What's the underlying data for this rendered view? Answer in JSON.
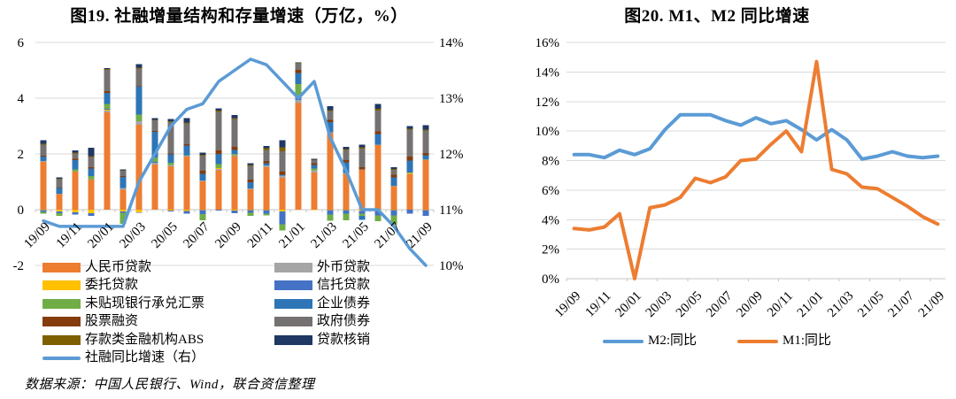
{
  "page": {
    "source_note": "数据来源：中国人民银行、Wind，联合资信整理"
  },
  "chart_data": [
    {
      "type": "bar",
      "subtype": "stacked-bars-with-line",
      "title": "图19. 社融增量结构和存量增速（万亿，%）",
      "categories": [
        "19/09",
        "19/10",
        "19/11",
        "19/12",
        "20/01",
        "20/02",
        "20/03",
        "20/04",
        "20/05",
        "20/06",
        "20/07",
        "20/08",
        "20/09",
        "20/10",
        "20/11",
        "20/12",
        "21/01",
        "21/02",
        "21/03",
        "21/04",
        "21/05",
        "21/06",
        "21/07",
        "21/08",
        "21/09"
      ],
      "x_tick_labels": [
        "19/09",
        "19/11",
        "20/01",
        "20/03",
        "20/05",
        "20/07",
        "20/09",
        "20/11",
        "21/01",
        "21/03",
        "21/05",
        "21/07",
        "21/09"
      ],
      "left_axis": {
        "ticks": [
          "6",
          "4",
          "2",
          "0",
          "-2"
        ],
        "tick_values": [
          6,
          4,
          2,
          0,
          -2
        ],
        "range": [
          -2,
          6
        ],
        "unit": "万亿"
      },
      "right_axis": {
        "ticks": [
          "14%",
          "13%",
          "12%",
          "11%",
          "10%"
        ],
        "tick_values": [
          14,
          13,
          12,
          11,
          10
        ],
        "range": [
          10,
          14
        ],
        "unit": "%"
      },
      "grid": true,
      "legend_position": "bottom-two-columns",
      "series": [
        {
          "name": "人民币贷款",
          "color": "#ED7D31",
          "values": [
            1.72,
            0.55,
            1.36,
            1.08,
            3.49,
            0.72,
            3.04,
            1.62,
            1.55,
            1.9,
            1.02,
            1.42,
            1.92,
            0.73,
            1.53,
            1.15,
            3.82,
            1.34,
            2.75,
            1.28,
            1.43,
            2.32,
            0.84,
            1.27,
            1.78
          ]
        },
        {
          "name": "外币贷款",
          "color": "#A5A5A5",
          "values": [
            0.02,
            0.02,
            0.02,
            0.02,
            0.06,
            0.05,
            0.14,
            0.07,
            0.05,
            0.04,
            0.02,
            0.04,
            0.04,
            0.03,
            0.05,
            0.07,
            0.11,
            0.07,
            0.03,
            0.03,
            0.02,
            0.02,
            0.02,
            0.02,
            0.02
          ]
        },
        {
          "name": "委托贷款",
          "color": "#FFC000",
          "values": [
            -0.02,
            -0.07,
            -0.1,
            -0.13,
            0.03,
            -0.06,
            -0.1,
            0.0,
            -0.03,
            -0.05,
            -0.02,
            0.04,
            -0.03,
            -0.02,
            -0.01,
            -0.06,
            0.01,
            -0.01,
            -0.02,
            -0.02,
            -0.04,
            -0.05,
            -0.02,
            0.02,
            -0.02
          ]
        },
        {
          "name": "信托贷款",
          "color": "#4472C4",
          "values": [
            -0.06,
            -0.06,
            -0.07,
            -0.1,
            0.04,
            -0.05,
            -0.01,
            0.02,
            -0.03,
            -0.09,
            -0.14,
            -0.03,
            -0.09,
            -0.09,
            -0.14,
            -0.46,
            0.08,
            -0.01,
            -0.16,
            -0.13,
            -0.1,
            -0.15,
            -0.19,
            -0.14,
            -0.2
          ]
        },
        {
          "name": "未贴现银行承兑汇票",
          "color": "#70AD47",
          "values": [
            -0.06,
            -0.1,
            0.06,
            0.11,
            0.18,
            -0.39,
            0.23,
            0.16,
            0.08,
            0.02,
            -0.22,
            0.14,
            0.04,
            -0.11,
            -0.06,
            -0.22,
            0.49,
            0.06,
            -0.22,
            -0.23,
            -0.09,
            -0.22,
            -0.33,
            0.02,
            0.01
          ]
        },
        {
          "name": "企业债券",
          "color": "#2E75B6",
          "values": [
            0.16,
            0.2,
            0.33,
            0.27,
            0.39,
            0.4,
            1.0,
            0.93,
            0.3,
            0.34,
            0.24,
            0.36,
            0.14,
            0.23,
            0.09,
            0.04,
            0.4,
            0.13,
            0.37,
            0.39,
            -0.13,
            0.37,
            0.3,
            0.43,
            0.14
          ]
        },
        {
          "name": "股票融资",
          "color": "#843C0C",
          "values": [
            0.03,
            0.02,
            0.05,
            0.04,
            0.06,
            0.04,
            0.02,
            0.03,
            0.03,
            0.05,
            0.12,
            0.13,
            0.11,
            0.09,
            0.08,
            0.11,
            0.1,
            0.07,
            0.08,
            0.08,
            0.07,
            0.1,
            0.09,
            0.15,
            0.08
          ]
        },
        {
          "name": "政府债券",
          "color": "#767171",
          "values": [
            0.41,
            0.3,
            0.19,
            0.37,
            0.76,
            0.18,
            0.64,
            0.37,
            1.14,
            0.74,
            0.54,
            1.38,
            1.01,
            0.49,
            0.4,
            0.72,
            0.24,
            0.11,
            0.31,
            0.37,
            0.67,
            0.75,
            0.18,
            0.97,
            0.81
          ]
        },
        {
          "name": "存款类金融机构ABS",
          "color": "#7F6000",
          "values": [
            0.03,
            0.02,
            0.03,
            0.03,
            0.04,
            0.02,
            0.03,
            0.02,
            0.02,
            0.03,
            0.03,
            0.04,
            0.03,
            0.04,
            0.05,
            0.15,
            0.02,
            0.02,
            0.03,
            0.03,
            0.05,
            0.06,
            0.03,
            0.03,
            0.04
          ]
        },
        {
          "name": "贷款核销",
          "color": "#1F3864",
          "values": [
            0.12,
            0.05,
            0.08,
            0.3,
            0.03,
            0.03,
            0.13,
            0.07,
            0.09,
            0.17,
            0.07,
            0.08,
            0.11,
            0.06,
            0.09,
            0.26,
            0.02,
            0.03,
            0.15,
            0.08,
            0.09,
            0.17,
            0.06,
            0.09,
            0.15
          ]
        }
      ],
      "line_series": {
        "name": "社融同比增速（右）",
        "color": "#5B9BD5",
        "axis": "right",
        "values": [
          10.8,
          10.7,
          10.7,
          10.7,
          10.7,
          10.7,
          11.5,
          12.0,
          12.5,
          12.8,
          12.9,
          13.3,
          13.5,
          13.7,
          13.6,
          13.3,
          13.0,
          13.3,
          12.3,
          11.7,
          11.0,
          11.0,
          10.7,
          10.3,
          10.0
        ]
      }
    },
    {
      "type": "line",
      "title": "图20. M1、M2 同比增速",
      "categories": [
        "19/09",
        "19/10",
        "19/11",
        "19/12",
        "20/01",
        "20/02",
        "20/03",
        "20/04",
        "20/05",
        "20/06",
        "20/07",
        "20/08",
        "20/09",
        "20/10",
        "20/11",
        "20/12",
        "21/01",
        "21/02",
        "21/03",
        "21/04",
        "21/05",
        "21/06",
        "21/07",
        "21/08",
        "21/09"
      ],
      "x_tick_labels": [
        "19/09",
        "19/11",
        "20/01",
        "20/03",
        "20/05",
        "20/07",
        "20/09",
        "20/11",
        "21/01",
        "21/03",
        "21/05",
        "21/07",
        "21/09"
      ],
      "y_axis": {
        "ticks": [
          "16%",
          "14%",
          "12%",
          "10%",
          "8%",
          "6%",
          "4%",
          "2%",
          "0%"
        ],
        "tick_values": [
          16,
          14,
          12,
          10,
          8,
          6,
          4,
          2,
          0
        ],
        "range": [
          0,
          16
        ],
        "unit": "%"
      },
      "grid": true,
      "legend_position": "bottom-center",
      "series": [
        {
          "name": "M2:同比",
          "color": "#5B9BD5",
          "values": [
            8.4,
            8.4,
            8.2,
            8.7,
            8.4,
            8.8,
            10.1,
            11.1,
            11.1,
            11.1,
            10.7,
            10.4,
            10.9,
            10.5,
            10.7,
            10.1,
            9.4,
            10.1,
            9.4,
            8.1,
            8.3,
            8.6,
            8.3,
            8.2,
            8.3
          ]
        },
        {
          "name": "M1:同比",
          "color": "#ED7D31",
          "values": [
            3.4,
            3.3,
            3.5,
            4.4,
            0.0,
            4.8,
            5.0,
            5.5,
            6.8,
            6.5,
            6.9,
            8.0,
            8.1,
            9.1,
            10.0,
            8.6,
            14.7,
            7.4,
            7.1,
            6.2,
            6.1,
            5.5,
            4.9,
            4.2,
            3.7
          ]
        }
      ]
    }
  ],
  "colors": {
    "grid": "#D9D9D9",
    "axis": "#C6C6C6",
    "text": "#000000",
    "tsf_line": "#5B9BD5",
    "m2_line": "#5B9BD5",
    "m1_line": "#ED7D31"
  }
}
